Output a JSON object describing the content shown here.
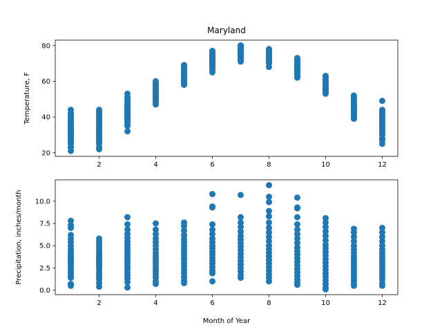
{
  "chart_data": [
    {
      "type": "scatter",
      "title": "Maryland",
      "xlabel": "",
      "ylabel": "Temperature, F",
      "xlim": [
        0.45,
        12.55
      ],
      "ylim": [
        18,
        83
      ],
      "xticks": [
        2,
        4,
        6,
        8,
        10,
        12
      ],
      "xtick_labels": [
        "2",
        "4",
        "6",
        "8",
        "10",
        "12"
      ],
      "yticks": [
        20,
        40,
        60,
        80
      ],
      "ytick_labels": [
        "20",
        "40",
        "60",
        "80"
      ],
      "color": "#1f77b4",
      "series": [
        {
          "x": 1,
          "values": [
            21,
            23,
            25,
            26,
            27,
            28,
            29,
            30,
            30,
            31,
            31,
            32,
            32,
            33,
            33,
            34,
            34,
            35,
            35,
            36,
            36,
            37,
            38,
            39,
            40,
            41,
            42,
            44
          ]
        },
        {
          "x": 2,
          "values": [
            22,
            23,
            25,
            26,
            27,
            28,
            29,
            30,
            31,
            31,
            32,
            33,
            33,
            34,
            35,
            35,
            36,
            37,
            38,
            38,
            39,
            40,
            41,
            42,
            43,
            44
          ]
        },
        {
          "x": 3,
          "values": [
            32,
            35,
            36,
            37,
            38,
            39,
            39,
            40,
            40,
            41,
            41,
            42,
            42,
            43,
            43,
            44,
            44,
            45,
            45,
            46,
            47,
            48,
            49,
            50,
            51,
            53
          ]
        },
        {
          "x": 4,
          "values": [
            47,
            48,
            49,
            50,
            50,
            51,
            51,
            52,
            52,
            53,
            53,
            54,
            54,
            55,
            55,
            56,
            57,
            58,
            59,
            60
          ]
        },
        {
          "x": 5,
          "values": [
            58,
            59,
            60,
            60,
            61,
            61,
            62,
            62,
            63,
            63,
            64,
            64,
            65,
            65,
            66,
            66,
            67,
            68,
            69,
            69
          ]
        },
        {
          "x": 6,
          "values": [
            65,
            66,
            67,
            68,
            69,
            69,
            70,
            70,
            71,
            71,
            72,
            72,
            73,
            73,
            74,
            74,
            75,
            76,
            77
          ]
        },
        {
          "x": 7,
          "values": [
            71,
            72,
            72,
            73,
            73,
            74,
            74,
            75,
            75,
            76,
            76,
            77,
            77,
            78,
            78,
            79,
            79,
            80,
            80
          ]
        },
        {
          "x": 8,
          "values": [
            68,
            70,
            71,
            72,
            72,
            73,
            73,
            74,
            74,
            75,
            75,
            76,
            76,
            77,
            77,
            78
          ]
        },
        {
          "x": 9,
          "values": [
            62,
            63,
            64,
            65,
            65,
            66,
            66,
            67,
            67,
            68,
            68,
            69,
            69,
            70,
            71,
            72,
            73
          ]
        },
        {
          "x": 10,
          "values": [
            53,
            54,
            54,
            55,
            55,
            56,
            56,
            57,
            57,
            58,
            58,
            59,
            59,
            60,
            61,
            62,
            63
          ]
        },
        {
          "x": 11,
          "values": [
            39,
            40,
            41,
            42,
            43,
            44,
            44,
            45,
            45,
            46,
            46,
            47,
            48,
            49,
            50,
            51,
            52
          ]
        },
        {
          "x": 12,
          "values": [
            25,
            27,
            28,
            30,
            31,
            32,
            33,
            34,
            35,
            36,
            37,
            38,
            39,
            40,
            41,
            42,
            43,
            44,
            49
          ]
        }
      ]
    },
    {
      "type": "scatter",
      "title": "",
      "xlabel": "Month of Year",
      "ylabel": "Precipitation, inches/month",
      "xlim": [
        0.45,
        12.55
      ],
      "ylim": [
        -0.5,
        12.4
      ],
      "xticks": [
        2,
        4,
        6,
        8,
        10,
        12
      ],
      "xtick_labels": [
        "2",
        "4",
        "6",
        "8",
        "10",
        "12"
      ],
      "yticks": [
        0.0,
        2.5,
        5.0,
        7.5,
        10.0
      ],
      "ytick_labels": [
        "0.0",
        "2.5",
        "5.0",
        "7.5",
        "10.0"
      ],
      "color": "#1f77b4",
      "series": [
        {
          "x": 1,
          "values": [
            0.5,
            0.7,
            1.4,
            1.7,
            2.0,
            2.3,
            2.5,
            2.8,
            3.0,
            3.2,
            3.4,
            3.6,
            3.8,
            4.0,
            4.3,
            4.6,
            5.0,
            5.4,
            5.8,
            6.2,
            7.0,
            7.3,
            7.8
          ]
        },
        {
          "x": 2,
          "values": [
            0.4,
            0.8,
            1.2,
            1.5,
            1.8,
            2.0,
            2.3,
            2.6,
            2.8,
            3.0,
            3.2,
            3.4,
            3.6,
            3.8,
            4.0,
            4.3,
            4.6,
            4.9,
            5.2,
            5.5,
            5.8
          ]
        },
        {
          "x": 3,
          "values": [
            0.3,
            0.9,
            1.3,
            1.7,
            2.0,
            2.4,
            2.7,
            3.0,
            3.3,
            3.6,
            3.9,
            4.2,
            4.5,
            4.8,
            5.1,
            5.5,
            5.9,
            6.3,
            6.8,
            7.4,
            8.2
          ]
        },
        {
          "x": 4,
          "values": [
            0.7,
            1.0,
            1.4,
            1.8,
            2.1,
            2.4,
            2.7,
            3.0,
            3.3,
            3.6,
            3.9,
            4.2,
            4.6,
            5.0,
            5.4,
            5.8,
            6.3,
            6.8,
            7.5
          ]
        },
        {
          "x": 5,
          "values": [
            0.8,
            1.1,
            1.5,
            1.9,
            2.3,
            2.7,
            3.0,
            3.4,
            3.7,
            4.0,
            4.3,
            4.7,
            5.0,
            5.4,
            5.8,
            6.2,
            6.7,
            7.2,
            7.6
          ]
        },
        {
          "x": 6,
          "values": [
            1.0,
            1.9,
            2.2,
            2.6,
            3.0,
            3.3,
            3.6,
            4.0,
            4.3,
            4.7,
            5.0,
            5.4,
            5.8,
            6.3,
            6.8,
            7.4,
            9.3,
            9.4,
            10.8
          ]
        },
        {
          "x": 7,
          "values": [
            1.4,
            1.7,
            2.1,
            2.5,
            2.9,
            3.3,
            3.7,
            4.1,
            4.5,
            4.9,
            5.3,
            5.7,
            6.1,
            6.6,
            7.1,
            7.6,
            8.2,
            10.7
          ]
        },
        {
          "x": 8,
          "values": [
            1.0,
            1.4,
            1.8,
            2.2,
            2.6,
            3.0,
            3.4,
            3.8,
            4.2,
            4.6,
            5.0,
            5.5,
            6.0,
            6.5,
            7.0,
            7.6,
            8.3,
            8.9,
            9.9,
            10.5,
            11.8
          ]
        },
        {
          "x": 9,
          "values": [
            0.6,
            0.9,
            1.2,
            1.6,
            2.0,
            2.4,
            2.8,
            3.2,
            3.6,
            4.0,
            4.4,
            4.8,
            5.3,
            5.8,
            6.3,
            6.8,
            7.4,
            8.2,
            9.2,
            9.3,
            10.4
          ]
        },
        {
          "x": 10,
          "values": [
            0.1,
            0.3,
            0.7,
            1.1,
            1.5,
            1.9,
            2.3,
            2.7,
            3.1,
            3.5,
            3.9,
            4.3,
            4.7,
            5.1,
            5.6,
            6.1,
            6.6,
            7.1,
            7.6,
            8.1
          ]
        },
        {
          "x": 11,
          "values": [
            0.5,
            0.8,
            1.1,
            1.4,
            1.7,
            2.0,
            2.3,
            2.6,
            2.9,
            3.2,
            3.5,
            3.8,
            4.2,
            4.6,
            5.0,
            5.5,
            6.0,
            6.5,
            6.9
          ]
        },
        {
          "x": 12,
          "values": [
            0.5,
            0.8,
            1.2,
            1.5,
            1.8,
            2.1,
            2.4,
            2.7,
            3.0,
            3.3,
            3.6,
            3.9,
            4.2,
            4.6,
            5.0,
            5.5,
            6.0,
            6.5,
            7.0
          ]
        }
      ]
    }
  ]
}
